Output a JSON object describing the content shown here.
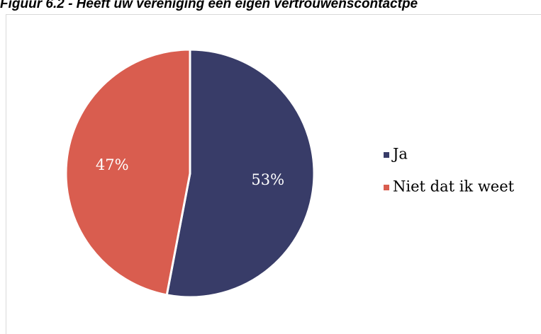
{
  "chart_data": {
    "type": "pie",
    "title": "Figuur 6.2 - Heeft uw vereniging een eigen vertrouwenscontactpe",
    "categories": [
      "Ja",
      "Niet dat ik weet"
    ],
    "values": [
      53,
      47
    ],
    "value_labels": [
      "53%",
      "47%"
    ],
    "colors": [
      "#383c68",
      "#d95d4f"
    ],
    "legend": "right"
  }
}
